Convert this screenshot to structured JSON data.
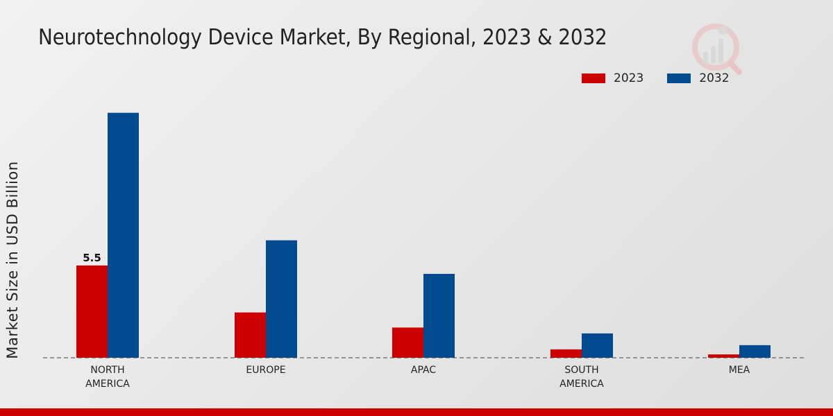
{
  "chart_data": {
    "type": "bar",
    "title": "Neurotechnology Device Market, By Regional, 2023 & 2032",
    "xlabel": "",
    "ylabel": "Market Size in USD Billion",
    "categories": [
      "NORTH AMERICA",
      "EUROPE",
      "APAC",
      "SOUTH AMERICA",
      "MEA"
    ],
    "category_lines": [
      [
        "NORTH",
        "AMERICA"
      ],
      [
        "EUROPE"
      ],
      [
        "APAC"
      ],
      [
        "SOUTH",
        "AMERICA"
      ],
      [
        "MEA"
      ]
    ],
    "series": [
      {
        "name": "2023",
        "color": "#cc0000",
        "values": [
          5.5,
          2.7,
          1.8,
          0.5,
          0.2
        ]
      },
      {
        "name": "2032",
        "color": "#004a8f",
        "values": [
          14.6,
          7.0,
          5.0,
          1.45,
          0.75
        ]
      }
    ],
    "data_labels": [
      {
        "series": 0,
        "index": 0,
        "text": "5.5"
      }
    ],
    "ylim": [
      0,
      20
    ],
    "grid": false,
    "legend": "top-right"
  }
}
